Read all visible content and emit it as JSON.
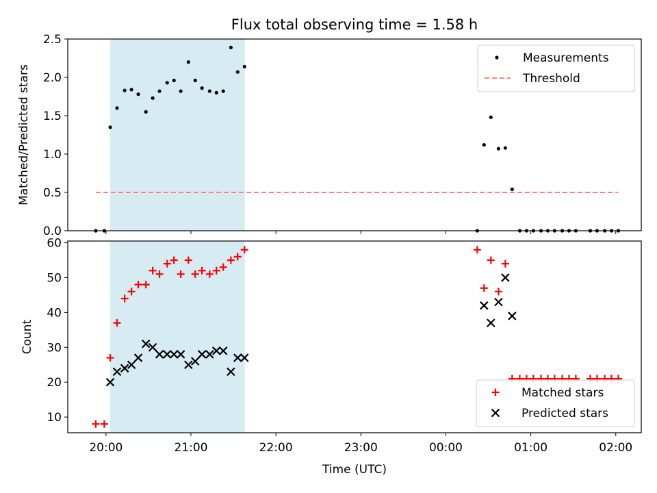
{
  "title": "Flux total observing time = 1.58 h",
  "xlabel": "Time (UTC)",
  "chart_data": [
    {
      "type": "scatter",
      "ylabel": "Matched/Predicted stars",
      "ylim": [
        0,
        2.5
      ],
      "yticks": [
        "0.0",
        "0.5",
        "1.0",
        "1.5",
        "2.0",
        "2.5"
      ],
      "x_unit": "hours since 00:00 UTC",
      "xlim": [
        -4.45,
        2.3
      ],
      "xtick_labels": [
        "20:00",
        "21:00",
        "22:00",
        "23:00",
        "00:00",
        "01:00",
        "02:00"
      ],
      "xtick_values": [
        -4,
        -3,
        -2,
        -1,
        0,
        1,
        2
      ],
      "shaded_interval": [
        "20:03",
        "21:38"
      ],
      "legend_position": "upper right",
      "series": [
        {
          "name": "Measurements",
          "marker": "dot",
          "color": "#000000",
          "points": [
            [
              -4.12,
              0.0
            ],
            [
              -4.02,
              0.0
            ],
            [
              -3.95,
              1.35
            ],
            [
              -3.87,
              1.6
            ],
            [
              -3.78,
              1.83
            ],
            [
              -3.7,
              1.84
            ],
            [
              -3.62,
              1.78
            ],
            [
              -3.53,
              1.55
            ],
            [
              -3.45,
              1.73
            ],
            [
              -3.37,
              1.82
            ],
            [
              -3.28,
              1.93
            ],
            [
              -3.2,
              1.96
            ],
            [
              -3.12,
              1.82
            ],
            [
              -3.03,
              2.2
            ],
            [
              -2.95,
              1.96
            ],
            [
              -2.87,
              1.86
            ],
            [
              -2.78,
              1.82
            ],
            [
              -2.7,
              1.8
            ],
            [
              -2.62,
              1.82
            ],
            [
              -2.53,
              2.39
            ],
            [
              -2.45,
              2.07
            ],
            [
              -2.37,
              2.14
            ],
            [
              0.37,
              0.0
            ],
            [
              0.45,
              1.12
            ],
            [
              0.53,
              1.48
            ],
            [
              0.62,
              1.07
            ],
            [
              0.7,
              1.08
            ],
            [
              0.78,
              0.54
            ],
            [
              0.87,
              0.0
            ],
            [
              0.95,
              0.0
            ],
            [
              1.03,
              0.0
            ],
            [
              1.12,
              0.0
            ],
            [
              1.2,
              0.0
            ],
            [
              1.28,
              0.0
            ],
            [
              1.37,
              0.0
            ],
            [
              1.45,
              0.0
            ],
            [
              1.53,
              0.0
            ],
            [
              1.7,
              0.0
            ],
            [
              1.78,
              0.0
            ],
            [
              1.87,
              0.0
            ],
            [
              1.95,
              0.0
            ],
            [
              2.03,
              0.0
            ]
          ]
        },
        {
          "name": "Threshold",
          "marker": "dashed-line",
          "color": "#ff7f7f",
          "points": [
            [
              -4.12,
              0.5
            ],
            [
              2.03,
              0.5
            ]
          ]
        }
      ]
    },
    {
      "type": "scatter",
      "ylabel": "Count",
      "ylim": [
        5.5,
        60.5
      ],
      "yticks": [
        "10",
        "20",
        "30",
        "40",
        "50",
        "60"
      ],
      "x_unit": "hours since 00:00 UTC",
      "xlim": [
        -4.45,
        2.3
      ],
      "xtick_labels": [
        "20:00",
        "21:00",
        "22:00",
        "23:00",
        "00:00",
        "01:00",
        "02:00"
      ],
      "xtick_values": [
        -4,
        -3,
        -2,
        -1,
        0,
        1,
        2
      ],
      "shaded_interval": [
        "20:03",
        "21:38"
      ],
      "legend_position": "lower right",
      "series": [
        {
          "name": "Matched stars",
          "marker": "plus",
          "color": "#ff0000",
          "points": [
            [
              -4.12,
              8
            ],
            [
              -4.02,
              8
            ],
            [
              -3.95,
              27
            ],
            [
              -3.87,
              37
            ],
            [
              -3.78,
              44
            ],
            [
              -3.7,
              46
            ],
            [
              -3.62,
              48
            ],
            [
              -3.53,
              48
            ],
            [
              -3.45,
              52
            ],
            [
              -3.37,
              51
            ],
            [
              -3.28,
              54
            ],
            [
              -3.2,
              55
            ],
            [
              -3.12,
              51
            ],
            [
              -3.03,
              55
            ],
            [
              -2.95,
              51
            ],
            [
              -2.87,
              52
            ],
            [
              -2.78,
              51
            ],
            [
              -2.7,
              52
            ],
            [
              -2.62,
              53
            ],
            [
              -2.53,
              55
            ],
            [
              -2.45,
              56
            ],
            [
              -2.37,
              58
            ],
            [
              0.37,
              58
            ],
            [
              0.45,
              47
            ],
            [
              0.53,
              55
            ],
            [
              0.62,
              46
            ],
            [
              0.7,
              54
            ],
            [
              0.78,
              21
            ],
            [
              0.87,
              21
            ],
            [
              0.95,
              21
            ],
            [
              1.03,
              21
            ],
            [
              1.12,
              21
            ],
            [
              1.2,
              21
            ],
            [
              1.28,
              21
            ],
            [
              1.37,
              21
            ],
            [
              1.45,
              21
            ],
            [
              1.53,
              21
            ],
            [
              1.7,
              21
            ],
            [
              1.78,
              21
            ],
            [
              1.87,
              21
            ],
            [
              1.95,
              21
            ],
            [
              2.03,
              21
            ]
          ]
        },
        {
          "name": "Predicted stars",
          "marker": "x",
          "color": "#000000",
          "points": [
            [
              -3.95,
              20
            ],
            [
              -3.87,
              23
            ],
            [
              -3.78,
              24
            ],
            [
              -3.7,
              25
            ],
            [
              -3.62,
              27
            ],
            [
              -3.53,
              31
            ],
            [
              -3.45,
              30
            ],
            [
              -3.37,
              28
            ],
            [
              -3.28,
              28
            ],
            [
              -3.2,
              28
            ],
            [
              -3.12,
              28
            ],
            [
              -3.03,
              25
            ],
            [
              -2.95,
              26
            ],
            [
              -2.87,
              28
            ],
            [
              -2.78,
              28
            ],
            [
              -2.7,
              29
            ],
            [
              -2.62,
              29
            ],
            [
              -2.53,
              23
            ],
            [
              -2.45,
              27
            ],
            [
              -2.37,
              27
            ],
            [
              0.45,
              42
            ],
            [
              0.53,
              37
            ],
            [
              0.62,
              43
            ],
            [
              0.7,
              50
            ],
            [
              0.78,
              39
            ]
          ]
        }
      ]
    }
  ]
}
